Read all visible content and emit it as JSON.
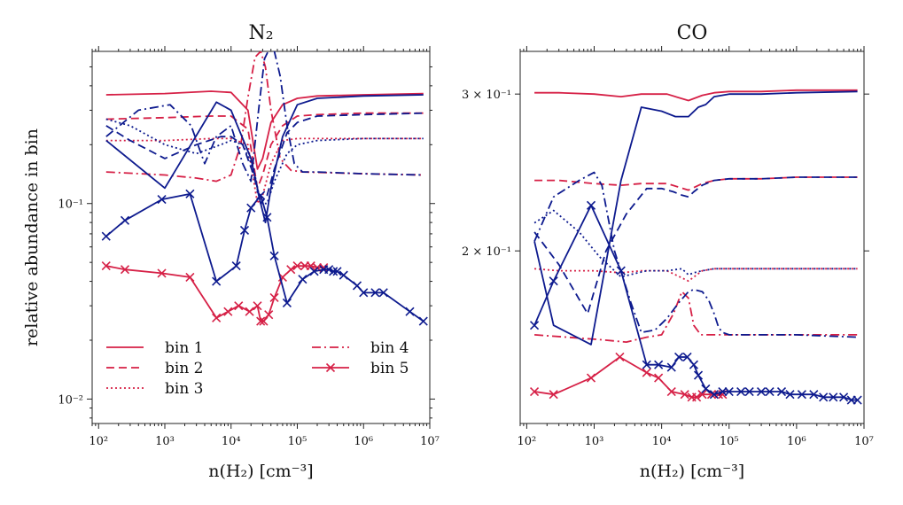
{
  "chart_data": [
    {
      "type": "line",
      "title": "N₂",
      "xlabel": "n(H₂) [cm⁻³]",
      "ylabel": "relative abundance in bin",
      "xscale": "log",
      "yscale": "log",
      "xlim": [
        80,
        10000000
      ],
      "ylim": [
        0.0075,
        0.6
      ],
      "xticks": [
        {
          "v": 100,
          "label": "10²"
        },
        {
          "v": 1000,
          "label": "10³"
        },
        {
          "v": 10000,
          "label": "10⁴"
        },
        {
          "v": 100000,
          "label": "10⁵"
        },
        {
          "v": 1000000,
          "label": "10⁶"
        },
        {
          "v": 10000000,
          "label": "10⁷"
        }
      ],
      "yticks": [
        {
          "v": 0.01,
          "label": "10⁻²"
        },
        {
          "v": 0.1,
          "label": "10⁻¹"
        }
      ],
      "legend": {
        "placement": "lower-left",
        "entries": [
          {
            "label": "bin 1",
            "style": "solid"
          },
          {
            "label": "bin 2",
            "style": "dashed"
          },
          {
            "label": "bin 3",
            "style": "dotted"
          },
          {
            "label": "bin 4",
            "style": "dashdot"
          },
          {
            "label": "bin 5",
            "style": "solid-x"
          }
        ]
      },
      "series": [
        {
          "model": "red",
          "bin": 1,
          "x": [
            130,
            1000,
            5000,
            10000,
            18000,
            25000,
            30000,
            40000,
            60000,
            100000,
            200000,
            1000000,
            8000000
          ],
          "y": [
            0.36,
            0.365,
            0.375,
            0.37,
            0.3,
            0.15,
            0.17,
            0.26,
            0.32,
            0.345,
            0.355,
            0.36,
            0.365
          ]
        },
        {
          "model": "red",
          "bin": 2,
          "x": [
            130,
            1000,
            5000,
            10000,
            18000,
            25000,
            30000,
            40000,
            60000,
            100000,
            200000,
            1000000,
            8000000
          ],
          "y": [
            0.27,
            0.275,
            0.28,
            0.28,
            0.24,
            0.12,
            0.14,
            0.2,
            0.25,
            0.28,
            0.285,
            0.29,
            0.29
          ]
        },
        {
          "model": "red",
          "bin": 3,
          "x": [
            130,
            1000,
            5000,
            10000,
            18000,
            25000,
            30000,
            40000,
            60000,
            100000,
            200000,
            1000000,
            8000000
          ],
          "y": [
            0.21,
            0.21,
            0.215,
            0.215,
            0.2,
            0.1,
            0.11,
            0.16,
            0.21,
            0.215,
            0.215,
            0.215,
            0.215
          ]
        },
        {
          "model": "red",
          "bin": 4,
          "x": [
            130,
            1000,
            3000,
            6000,
            10000,
            14000,
            18000,
            23000,
            28000,
            33000,
            40000,
            55000,
            80000,
            120000,
            1000000,
            8000000
          ],
          "y": [
            0.145,
            0.14,
            0.135,
            0.13,
            0.14,
            0.2,
            0.35,
            0.56,
            0.6,
            0.5,
            0.3,
            0.17,
            0.148,
            0.145,
            0.142,
            0.14
          ]
        },
        {
          "model": "red",
          "bin": 5,
          "x": [
            130,
            250,
            900,
            2400,
            6000,
            9000,
            13000,
            19000,
            25000,
            28000,
            31000,
            37000,
            45000,
            60000,
            80000,
            100000,
            130000,
            160000,
            200000,
            250000
          ],
          "y": [
            0.048,
            0.046,
            0.044,
            0.042,
            0.026,
            0.028,
            0.03,
            0.028,
            0.03,
            0.025,
            0.025,
            0.027,
            0.033,
            0.042,
            0.046,
            0.048,
            0.048,
            0.048,
            0.047,
            0.047
          ]
        },
        {
          "model": "blue",
          "bin": 1,
          "x": [
            130,
            1000,
            6000,
            10000,
            20000,
            28000,
            33000,
            40000,
            60000,
            100000,
            200000,
            1000000,
            8000000
          ],
          "y": [
            0.21,
            0.12,
            0.33,
            0.3,
            0.17,
            0.1,
            0.08,
            0.12,
            0.22,
            0.32,
            0.345,
            0.355,
            0.36
          ]
        },
        {
          "model": "blue",
          "bin": 2,
          "x": [
            130,
            300,
            1000,
            3000,
            7000,
            10000,
            15000,
            22000,
            28000,
            35000,
            45000,
            70000,
            100000,
            200000,
            1000000,
            8000000
          ],
          "y": [
            0.25,
            0.21,
            0.17,
            0.2,
            0.22,
            0.22,
            0.2,
            0.14,
            0.1,
            0.11,
            0.15,
            0.23,
            0.26,
            0.28,
            0.285,
            0.29
          ]
        },
        {
          "model": "blue",
          "bin": 3,
          "x": [
            130,
            300,
            1000,
            3000,
            7000,
            10000,
            15000,
            22000,
            28000,
            35000,
            45000,
            70000,
            100000,
            200000,
            1000000,
            8000000
          ],
          "y": [
            0.27,
            0.25,
            0.2,
            0.18,
            0.2,
            0.21,
            0.2,
            0.15,
            0.1,
            0.1,
            0.13,
            0.18,
            0.2,
            0.21,
            0.215,
            0.215
          ]
        },
        {
          "model": "blue",
          "bin": 4,
          "x": [
            130,
            400,
            1200,
            2500,
            4000,
            6000,
            10000,
            15000,
            20000,
            26000,
            32000,
            38000,
            45000,
            55000,
            70000,
            90000,
            120000,
            200000,
            1000000,
            8000000
          ],
          "y": [
            0.22,
            0.3,
            0.32,
            0.25,
            0.16,
            0.22,
            0.25,
            0.16,
            0.13,
            0.3,
            0.55,
            0.62,
            0.6,
            0.45,
            0.25,
            0.16,
            0.145,
            0.145,
            0.142,
            0.14
          ]
        },
        {
          "model": "blue",
          "bin": 5,
          "x": [
            130,
            250,
            900,
            2400,
            6000,
            12000,
            16000,
            20000,
            28000,
            35000,
            45000,
            70000,
            120000,
            180000,
            250000,
            300000,
            350000,
            400000,
            500000,
            800000,
            1000000,
            1500000,
            2000000,
            5000000,
            8000000
          ],
          "y": [
            0.068,
            0.082,
            0.105,
            0.112,
            0.04,
            0.048,
            0.073,
            0.095,
            0.11,
            0.085,
            0.054,
            0.031,
            0.041,
            0.045,
            0.046,
            0.046,
            0.045,
            0.045,
            0.043,
            0.038,
            0.035,
            0.035,
            0.035,
            0.028,
            0.025
          ]
        }
      ]
    },
    {
      "type": "line",
      "title": "CO",
      "xlabel": "n(H₂) [cm⁻³]",
      "ylabel": "",
      "xscale": "log",
      "yscale": "log",
      "xlim": [
        80,
        10000000
      ],
      "ylim": [
        0.128,
        0.335
      ],
      "xticks": [
        {
          "v": 100,
          "label": "10²"
        },
        {
          "v": 1000,
          "label": "10³"
        },
        {
          "v": 10000,
          "label": "10⁴"
        },
        {
          "v": 100000,
          "label": "10⁵"
        },
        {
          "v": 1000000,
          "label": "10⁶"
        },
        {
          "v": 10000000,
          "label": "10⁷"
        }
      ],
      "yticks": [
        {
          "v": 0.2,
          "label": "2 × 10⁻¹"
        },
        {
          "v": 0.3,
          "label": "3 × 10⁻¹"
        }
      ],
      "series": [
        {
          "model": "red",
          "bin": 1,
          "x": [
            130,
            300,
            1000,
            2500,
            5000,
            12000,
            25000,
            40000,
            60000,
            100000,
            300000,
            1000000,
            8000000
          ],
          "y": [
            0.301,
            0.301,
            0.3,
            0.298,
            0.3,
            0.3,
            0.295,
            0.299,
            0.301,
            0.302,
            0.302,
            0.303,
            0.303
          ]
        },
        {
          "model": "red",
          "bin": 2,
          "x": [
            130,
            300,
            1000,
            2500,
            5000,
            12000,
            25000,
            40000,
            60000,
            100000,
            300000,
            1000000,
            8000000
          ],
          "y": [
            0.24,
            0.24,
            0.238,
            0.237,
            0.238,
            0.238,
            0.234,
            0.238,
            0.24,
            0.241,
            0.241,
            0.242,
            0.242
          ]
        },
        {
          "model": "red",
          "bin": 3,
          "x": [
            130,
            300,
            1000,
            2500,
            5000,
            12000,
            25000,
            40000,
            60000,
            100000,
            300000,
            1000000,
            8000000
          ],
          "y": [
            0.191,
            0.19,
            0.19,
            0.189,
            0.19,
            0.19,
            0.185,
            0.19,
            0.191,
            0.191,
            0.191,
            0.191,
            0.191
          ]
        },
        {
          "model": "red",
          "bin": 4,
          "x": [
            130,
            400,
            1200,
            3000,
            6000,
            10000,
            15000,
            20000,
            25000,
            30000,
            38000,
            50000,
            70000,
            100000,
            300000,
            1000000,
            8000000
          ],
          "y": [
            0.161,
            0.16,
            0.159,
            0.158,
            0.16,
            0.161,
            0.17,
            0.18,
            0.177,
            0.165,
            0.161,
            0.161,
            0.161,
            0.161,
            0.161,
            0.161,
            0.161
          ]
        },
        {
          "model": "red",
          "bin": 5,
          "x": [
            130,
            250,
            900,
            2400,
            6000,
            9000,
            14000,
            22000,
            28000,
            33000,
            40000,
            55000,
            70000,
            80000
          ],
          "y": [
            0.139,
            0.138,
            0.144,
            0.152,
            0.146,
            0.144,
            0.139,
            0.138,
            0.137,
            0.137,
            0.138,
            0.138,
            0.138,
            0.138
          ]
        },
        {
          "model": "blue",
          "bin": 1,
          "x": [
            130,
            250,
            900,
            2500,
            5000,
            10000,
            16000,
            25000,
            35000,
            45000,
            60000,
            100000,
            300000,
            1000000,
            8000000
          ],
          "y": [
            0.205,
            0.165,
            0.157,
            0.24,
            0.29,
            0.287,
            0.283,
            0.283,
            0.29,
            0.292,
            0.298,
            0.3,
            0.3,
            0.301,
            0.302
          ]
        },
        {
          "model": "blue",
          "bin": 2,
          "x": [
            130,
            300,
            800,
            1500,
            3000,
            6000,
            10000,
            15000,
            20000,
            25000,
            30000,
            40000,
            60000,
            100000,
            300000,
            1000000,
            8000000
          ],
          "y": [
            0.21,
            0.193,
            0.17,
            0.2,
            0.22,
            0.235,
            0.235,
            0.233,
            0.231,
            0.23,
            0.233,
            0.237,
            0.24,
            0.241,
            0.241,
            0.242,
            0.242
          ]
        },
        {
          "model": "blue",
          "bin": 3,
          "x": [
            130,
            250,
            600,
            1200,
            2500,
            6000,
            12000,
            20000,
            25000,
            30000,
            40000,
            60000,
            100000,
            300000,
            1000000,
            8000000
          ],
          "y": [
            0.215,
            0.222,
            0.21,
            0.197,
            0.187,
            0.19,
            0.19,
            0.191,
            0.188,
            0.189,
            0.19,
            0.191,
            0.191,
            0.191,
            0.191,
            0.191
          ]
        },
        {
          "model": "blue",
          "bin": 4,
          "x": [
            130,
            250,
            600,
            1000,
            1300,
            2000,
            3500,
            5000,
            8000,
            12000,
            18000,
            25000,
            30000,
            40000,
            50000,
            60000,
            70000,
            80000,
            100000,
            200000,
            1000000,
            8000000
          ],
          "y": [
            0.205,
            0.23,
            0.24,
            0.245,
            0.237,
            0.2,
            0.175,
            0.162,
            0.163,
            0.168,
            0.175,
            0.18,
            0.181,
            0.18,
            0.176,
            0.17,
            0.164,
            0.162,
            0.161,
            0.161,
            0.161,
            0.16
          ]
        },
        {
          "model": "blue",
          "bin": 5,
          "x": [
            130,
            250,
            900,
            2500,
            6000,
            9000,
            14000,
            18000,
            24000,
            30000,
            35000,
            45000,
            60000,
            80000,
            100000,
            150000,
            200000,
            300000,
            400000,
            600000,
            800000,
            1200000,
            1800000,
            2500000,
            3500000,
            5000000,
            6500000,
            8000000
          ],
          "y": [
            0.165,
            0.185,
            0.225,
            0.19,
            0.149,
            0.149,
            0.148,
            0.152,
            0.152,
            0.149,
            0.145,
            0.14,
            0.138,
            0.139,
            0.139,
            0.139,
            0.139,
            0.139,
            0.139,
            0.139,
            0.138,
            0.138,
            0.138,
            0.137,
            0.137,
            0.137,
            0.136,
            0.136
          ]
        }
      ]
    }
  ],
  "colors": {
    "red": "#d62046",
    "blue": "#0d1a8e",
    "axes": "#222222"
  }
}
